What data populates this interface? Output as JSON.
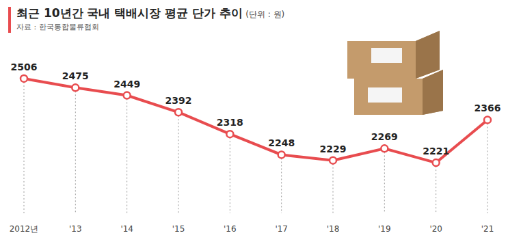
{
  "chart_data": {
    "type": "line",
    "title": "최근 10년간 국내 택배시장 평균 단가 추이",
    "subtitle": "(단위 : 원)",
    "annotations": [
      "자료 : 한국통합물류협회"
    ],
    "categories": [
      "2012년",
      "'13",
      "'14",
      "'15",
      "'16",
      "'17",
      "'18",
      "'19",
      "'20",
      "'21"
    ],
    "values": [
      2506,
      2475,
      2449,
      2392,
      2318,
      2248,
      2229,
      2269,
      2221,
      2366
    ],
    "color": "#e84c4f",
    "ylim": [
      2050,
      2610
    ],
    "grid": false,
    "data_labels": true,
    "tick_labels": "x",
    "marker": "circle",
    "line_style": "solid"
  }
}
